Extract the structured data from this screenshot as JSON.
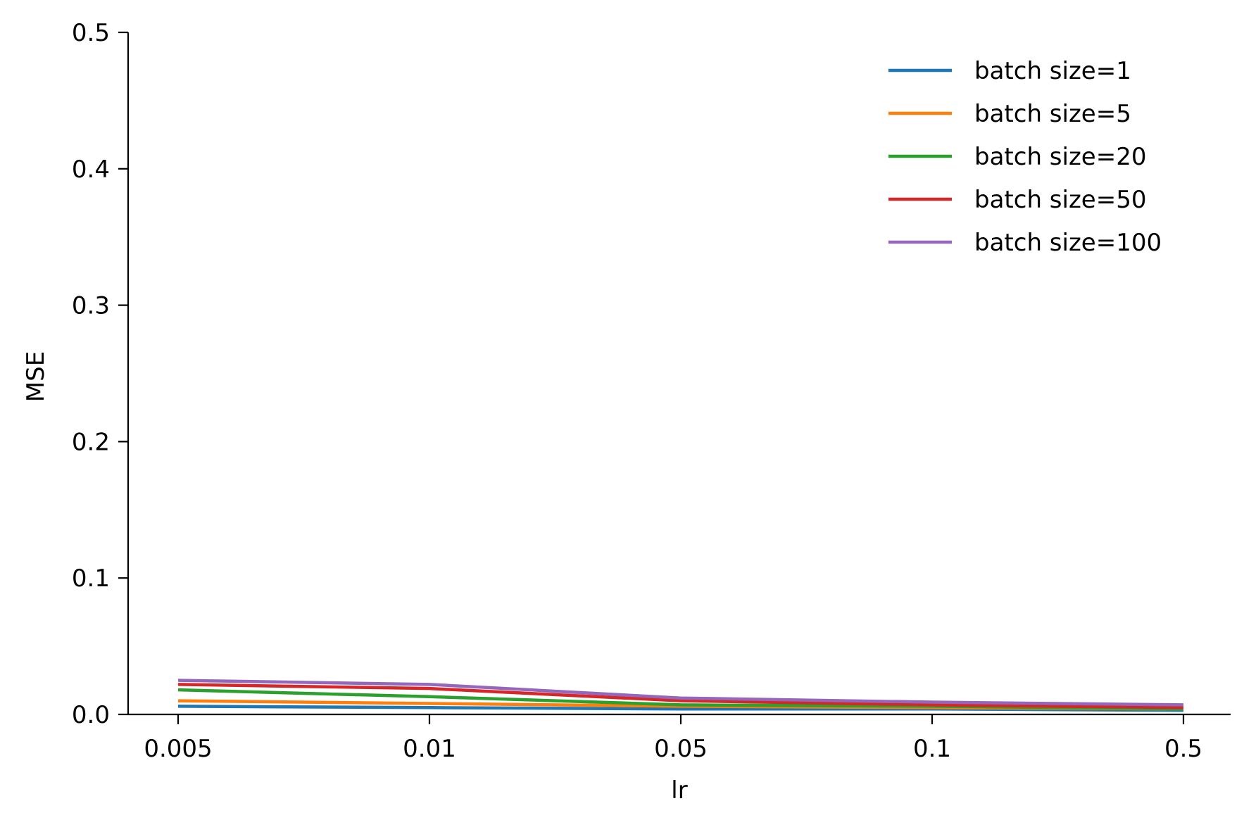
{
  "chart_data": {
    "type": "line",
    "title": "",
    "xlabel": "lr",
    "ylabel": "MSE",
    "x": [
      "0.005",
      "0.01",
      "0.05",
      "0.1",
      "0.5"
    ],
    "ylim": [
      0.0,
      0.5
    ],
    "yticks": [
      "0.0",
      "0.1",
      "0.2",
      "0.3",
      "0.4",
      "0.5"
    ],
    "grid": false,
    "legend_position": "top-right",
    "series": [
      {
        "name": "batch size=1",
        "color": "#1f77b4",
        "values": [
          0.006,
          0.005,
          0.004,
          0.004,
          0.003
        ]
      },
      {
        "name": "batch size=5",
        "color": "#ff7f0e",
        "values": [
          0.01,
          0.008,
          0.006,
          0.005,
          0.004
        ]
      },
      {
        "name": "batch size=20",
        "color": "#2ca02c",
        "values": [
          0.018,
          0.013,
          0.007,
          0.006,
          0.004
        ]
      },
      {
        "name": "batch size=50",
        "color": "#d62728",
        "values": [
          0.022,
          0.019,
          0.01,
          0.007,
          0.005
        ]
      },
      {
        "name": "batch size=100",
        "color": "#9467bd",
        "values": [
          0.025,
          0.022,
          0.012,
          0.009,
          0.007
        ]
      }
    ]
  }
}
